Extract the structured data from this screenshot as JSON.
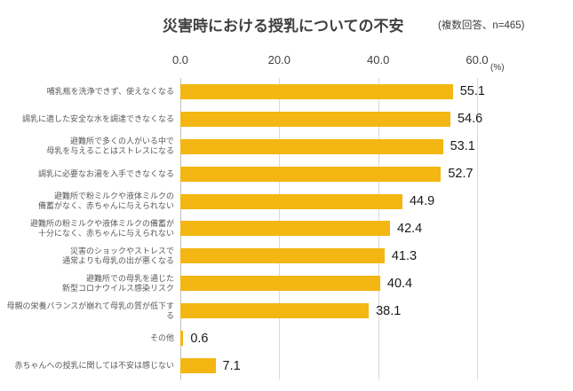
{
  "chart_data": {
    "type": "bar",
    "orientation": "horizontal",
    "title": "災害時における授乳についての不安",
    "note": "(複数回答、n=465)",
    "categories": [
      "哺乳瓶を洗浄できず、使えなくなる",
      "調乳に適した安全な水を調達できなくなる",
      "避難所で多くの人がいる中で\n母乳を与えることはストレスになる",
      "調乳に必要なお湯を入手できなくなる",
      "避難所で粉ミルクや液体ミルクの\n備蓄がなく、赤ちゃんに与えられない",
      "避難所の粉ミルクや液体ミルクの備蓄が\n十分になく、赤ちゃんに与えられない",
      "災害のショックやストレスで\n通常よりも母乳の出が悪くなる",
      "避難所での母乳を通じた\n新型コロナウイルス感染リスク",
      "母親の栄養バランスが崩れて母乳の質が低下する",
      "その他",
      "赤ちゃんへの授乳に関しては不安は感じない"
    ],
    "values": [
      55.1,
      54.6,
      53.1,
      52.7,
      44.9,
      42.4,
      41.3,
      40.4,
      38.1,
      0.6,
      7.1
    ],
    "value_labels": [
      "55.1",
      "54.6",
      "53.1",
      "52.7",
      "44.9",
      "42.4",
      "41.3",
      "40.4",
      "38.1",
      "0.6",
      "7.1"
    ],
    "xlim": [
      0,
      60
    ],
    "xticks": [
      0,
      20,
      40,
      60
    ],
    "tick_labels": [
      "0.0",
      "20.0",
      "40.0",
      "60.0"
    ],
    "axis_unit_label": "(%)",
    "bar_color": "#F3B612",
    "gridline_color": "#D9D9D9",
    "grid": true,
    "legend": "none"
  }
}
